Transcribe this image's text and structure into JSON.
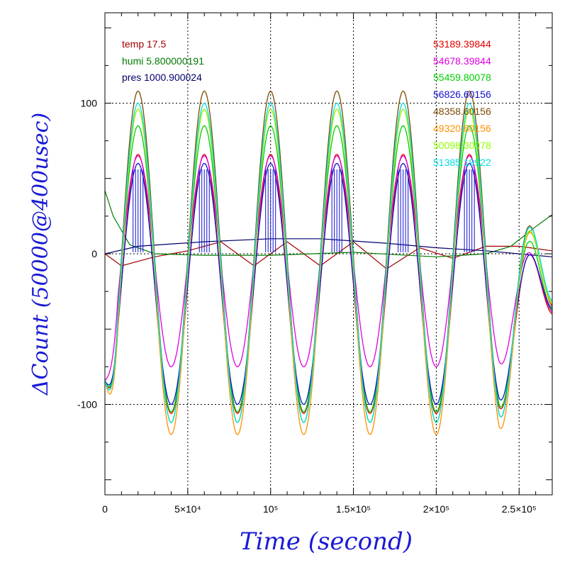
{
  "chart_data": {
    "type": "line",
    "title": "",
    "xlabel": "Time (second)",
    "ylabel": "ΔCount (50000@400usec)",
    "xlim": [
      0,
      270000
    ],
    "ylim": [
      -160,
      160
    ],
    "grid": true,
    "x_ticks": [
      {
        "value": 0,
        "label": "0"
      },
      {
        "value": 50000,
        "label": "5×10⁴"
      },
      {
        "value": 100000,
        "label": "10⁵"
      },
      {
        "value": 150000,
        "label": "1.5×10⁵"
      },
      {
        "value": 200000,
        "label": "2×10⁵"
      },
      {
        "value": 250000,
        "label": "2.5×10⁵"
      }
    ],
    "y_ticks": [
      {
        "value": -100,
        "label": "-100"
      },
      {
        "value": 0,
        "label": "0"
      },
      {
        "value": 100,
        "label": "100"
      }
    ],
    "env_legend": [
      {
        "text": "temp 17.5",
        "color": "#a00000"
      },
      {
        "text": "humi 5.800000191",
        "color": "#007a00"
      },
      {
        "text": "pres 1000.900024",
        "color": "#00006e"
      }
    ],
    "series_legend": [
      {
        "name": "53189.39844",
        "color": "#e00000"
      },
      {
        "name": "54678.39844",
        "color": "#e000e0"
      },
      {
        "name": "55459.80078",
        "color": "#00d000"
      },
      {
        "name": "56826.60156",
        "color": "#1010d0"
      },
      {
        "name": "48358.60156",
        "color": "#7a4a00"
      },
      {
        "name": "49320.60156",
        "color": "#ff9000"
      },
      {
        "name": "50098.30078",
        "color": "#90ff00"
      },
      {
        "name": "51385.19922",
        "color": "#00e0e0"
      }
    ],
    "series": [
      {
        "name": "53189.39844",
        "color": "#e00000",
        "amp": 86,
        "offset": -20,
        "phase": 20000,
        "spikes": false
      },
      {
        "name": "54678.39844",
        "color": "#e000e0",
        "amp": 70,
        "offset": -5,
        "phase": 20000,
        "spikes": false
      },
      {
        "name": "55459.80078",
        "color": "#00d000",
        "amp": 95,
        "offset": -10,
        "phase": 20000,
        "spikes": false
      },
      {
        "name": "56826.60156",
        "color": "#1010d0",
        "amp": 80,
        "offset": -20,
        "phase": 20000,
        "spikes": true
      },
      {
        "name": "48358.60156",
        "color": "#7a4a00",
        "amp": 110,
        "offset": -2,
        "phase": 20000,
        "spikes": false
      },
      {
        "name": "49320.60156",
        "color": "#ff9000",
        "amp": 108,
        "offset": -12,
        "phase": 20000,
        "spikes": false
      },
      {
        "name": "50098.30078",
        "color": "#90ff00",
        "amp": 104,
        "offset": -8,
        "phase": 20000,
        "spikes": false
      },
      {
        "name": "51385.19922",
        "color": "#00e0e0",
        "amp": 106,
        "offset": -6,
        "phase": 20000,
        "spikes": false
      }
    ],
    "env_series": [
      {
        "name": "temp",
        "color": "#a00000",
        "x": [
          0,
          10000,
          30000,
          50000,
          70000,
          90000,
          110000,
          130000,
          150000,
          170000,
          190000,
          210000,
          230000,
          250000,
          270000
        ],
        "y": [
          0,
          -8,
          -2,
          2,
          8,
          -8,
          8,
          -8,
          8,
          -10,
          4,
          -3,
          5,
          5,
          2
        ]
      },
      {
        "name": "humi",
        "color": "#007a00",
        "x": [
          0,
          5000,
          15000,
          30000,
          60000,
          100000,
          150000,
          200000,
          230000,
          245000,
          260000,
          270000
        ],
        "y": [
          42,
          25,
          6,
          0,
          -1,
          -1,
          1,
          -2,
          0,
          5,
          18,
          26
        ]
      },
      {
        "name": "pres",
        "color": "#00006e",
        "x": [
          0,
          20000,
          60000,
          100000,
          130000,
          170000,
          200000,
          230000,
          270000
        ],
        "y": [
          0,
          5,
          8,
          10,
          10,
          7,
          4,
          2,
          -2
        ]
      }
    ]
  }
}
